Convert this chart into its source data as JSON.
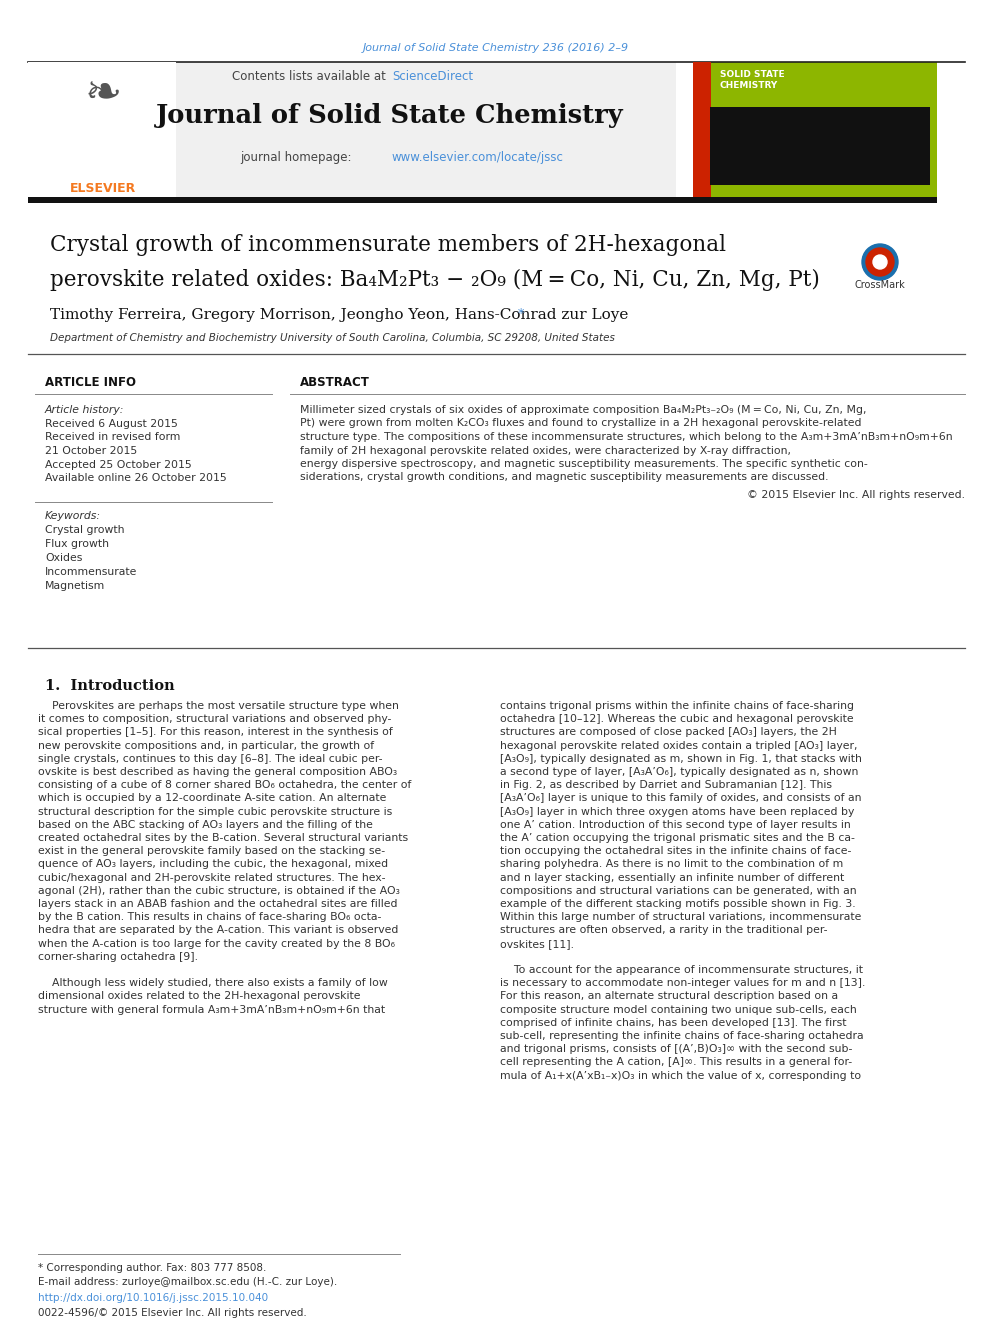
{
  "journal_ref": "Journal of Solid State Chemistry 236 (2016) 2–9",
  "journal_name": "Journal of Solid State Chemistry",
  "contents_text": "Contents lists available at ",
  "science_direct": "ScienceDirect",
  "homepage_url": "www.elsevier.com/locate/jssc",
  "title_line1": "Crystal growth of incommensurate members of 2H-hexagonal",
  "title_line2": "perovskite related oxides: Ba₄M₂Pt₃ − ₂O₉ (M = Co, Ni, Cu, Zn, Mg, Pt)",
  "authors": "Timothy Ferreira, Gregory Morrison, Jeongho Yeon, Hans-Conrad zur Loye",
  "affiliation": "Department of Chemistry and Biochemistry University of South Carolina, Columbia, SC 29208, United States",
  "article_info_header": "ARTICLE INFO",
  "abstract_header": "ABSTRACT",
  "article_history_label": "Article history:",
  "received1": "Received 6 August 2015",
  "revised": "Received in revised form",
  "revised_date": "21 October 2015",
  "accepted": "Accepted 25 October 2015",
  "available": "Available online 26 October 2015",
  "keywords_label": "Keywords:",
  "keywords": [
    "Crystal growth",
    "Flux growth",
    "Oxides",
    "Incommensurate",
    "Magnetism"
  ],
  "abstract_lines": [
    "Millimeter sized crystals of six oxides of approximate composition Ba₄M₂Pt₃₋₂O₉ (M = Co, Ni, Cu, Zn, Mg,",
    "Pt) were grown from molten K₂CO₃ fluxes and found to crystallize in a 2H hexagonal perovskite-related",
    "structure type. The compositions of these incommensurate structures, which belong to the A₃m+3mA’nB₃m+nO₉m+6n",
    "family of 2H hexagonal perovskite related oxides, were characterized by X-ray diffraction,",
    "energy dispersive spectroscopy, and magnetic susceptibility measurements. The specific synthetic con-",
    "siderations, crystal growth conditions, and magnetic susceptibility measurements are discussed."
  ],
  "copyright": "© 2015 Elsevier Inc. All rights reserved.",
  "intro_header": "1.  Introduction",
  "intro1_lines": [
    "    Perovskites are perhaps the most versatile structure type when",
    "it comes to composition, structural variations and observed phy-",
    "sical properties [1–5]. For this reason, interest in the synthesis of",
    "new perovskite compositions and, in particular, the growth of",
    "single crystals, continues to this day [6–8]. The ideal cubic per-",
    "ovskite is best described as having the general composition ABO₃",
    "consisting of a cube of 8 corner shared BO₆ octahedra, the center of",
    "which is occupied by a 12-coordinate A-site cation. An alternate",
    "structural description for the simple cubic perovskite structure is",
    "based on the ABC stacking of AO₃ layers and the filling of the",
    "created octahedral sites by the B-cation. Several structural variants",
    "exist in the general perovskite family based on the stacking se-",
    "quence of AO₃ layers, including the cubic, the hexagonal, mixed",
    "cubic/hexagonal and 2H-perovskite related structures. The hex-",
    "agonal (2H), rather than the cubic structure, is obtained if the AO₃",
    "layers stack in an ABAB fashion and the octahedral sites are filled",
    "by the B cation. This results in chains of face-sharing BO₆ octa-",
    "hedra that are separated by the A-cation. This variant is observed",
    "when the A-cation is too large for the cavity created by the 8 BO₆",
    "corner-sharing octahedra [9].",
    "",
    "    Although less widely studied, there also exists a family of low",
    "dimensional oxides related to the 2H-hexagonal perovskite",
    "structure with general formula A₃m+3mA’nB₃m+nO₉m+6n that"
  ],
  "intro2_lines": [
    "contains trigonal prisms within the infinite chains of face-sharing",
    "octahedra [10–12]. Whereas the cubic and hexagonal perovskite",
    "structures are composed of close packed [AO₃] layers, the 2H",
    "hexagonal perovskite related oxides contain a tripled [AO₃] layer,",
    "[A₃O₉], typically designated as m, shown in Fig. 1, that stacks with",
    "a second type of layer, [A₃A’O₆], typically designated as n, shown",
    "in Fig. 2, as described by Darriet and Subramanian [12]. This",
    "[A₃A’O₆] layer is unique to this family of oxides, and consists of an",
    "[A₃O₉] layer in which three oxygen atoms have been replaced by",
    "one A’ cation. Introduction of this second type of layer results in",
    "the A’ cation occupying the trigonal prismatic sites and the B ca-",
    "tion occupying the octahedral sites in the infinite chains of face-",
    "sharing polyhedra. As there is no limit to the combination of m",
    "and n layer stacking, essentially an infinite number of different",
    "compositions and structural variations can be generated, with an",
    "example of the different stacking motifs possible shown in Fig. 3.",
    "Within this large number of structural variations, incommensurate",
    "structures are often observed, a rarity in the traditional per-",
    "ovskites [11].",
    "",
    "    To account for the appearance of incommensurate structures, it",
    "is necessary to accommodate non-integer values for m and n [13].",
    "For this reason, an alternate structural description based on a",
    "composite structure model containing two unique sub-cells, each",
    "comprised of infinite chains, has been developed [13]. The first",
    "sub-cell, representing the infinite chains of face-sharing octahedra",
    "and trigonal prisms, consists of [(A’,B)O₃]∞ with the second sub-",
    "cell representing the A cation, [A]∞. This results in a general for-",
    "mula of A₁+x(A’xB₁₋x)O₃ in which the value of x, corresponding to"
  ],
  "footnote_star": "* Corresponding author. Fax: 803 777 8508.",
  "footnote_email": "E-mail address: zurloye@mailbox.sc.edu (H.-C. zur Loye).",
  "doi": "http://dx.doi.org/10.1016/j.jssc.2015.10.040",
  "issn": "0022-4596/© 2015 Elsevier Inc. All rights reserved.",
  "bg_white": "#ffffff",
  "link_color": "#4a90d9",
  "elsevier_orange": "#f47920",
  "journal_cover_green": "#8db600"
}
